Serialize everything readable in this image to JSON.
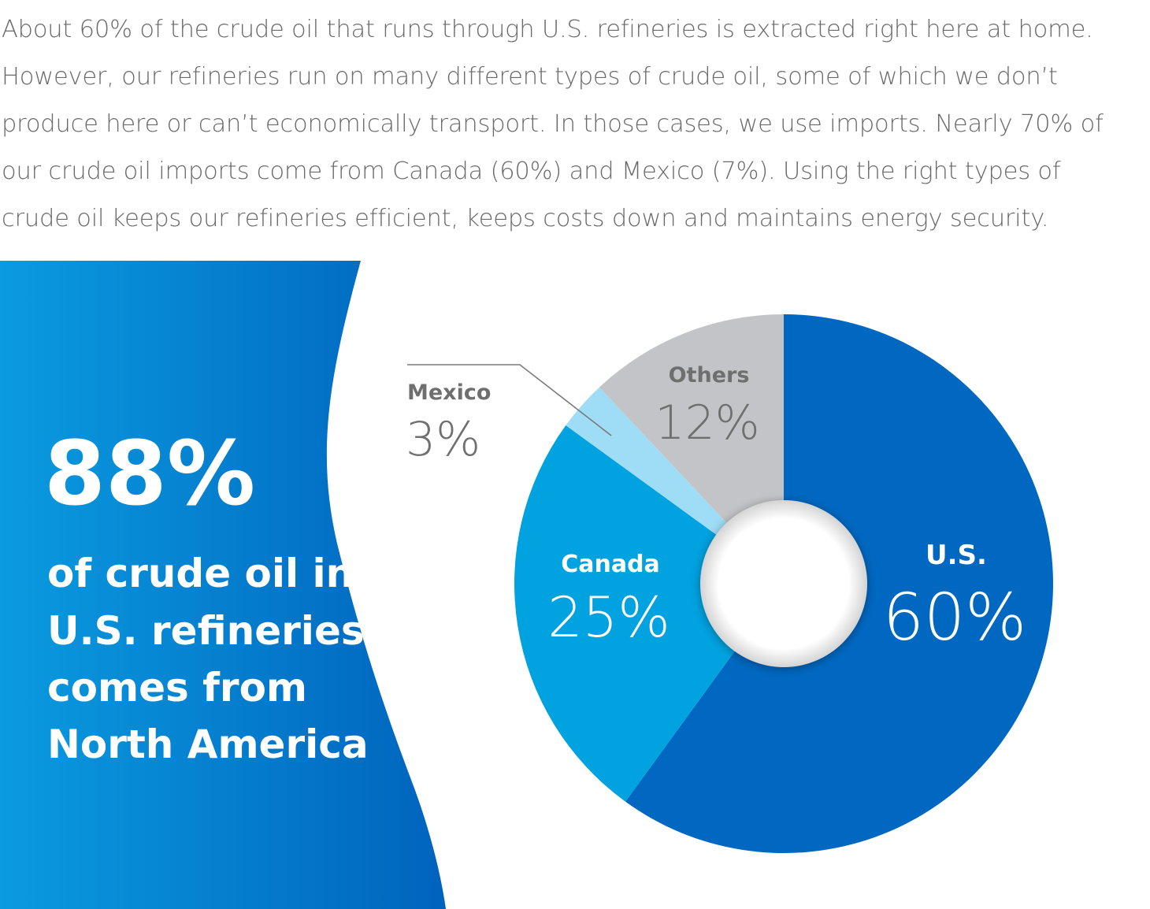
{
  "intro": {
    "lines": [
      "About 60% of the crude oil that runs through U.S. refineries is extracted right here at home.",
      "However, our refineries run on many different types of crude oil, some of which we don’t",
      "produce here or can’t economically transport. In those cases, we use imports. Nearly 70% of",
      "our crude oil imports come from Canada (60%) and Mexico (7%). Using the right types of",
      "crude oil keeps our refineries efficient, keeps costs down and maintains energy security."
    ]
  },
  "callout": {
    "stat": "88%",
    "lines": [
      "of crude oil in",
      "U.S. refineries",
      "comes from",
      "North America"
    ]
  },
  "colors": {
    "us": "#0068c1",
    "canada": "#00a2e0",
    "mexico": "#9fdcf5",
    "others": "#c3c4c7",
    "panel_dark": "#0063bd",
    "panel_light": "#0a9be0",
    "label_dark": "#6f6f6f",
    "label_light": "#ffffff"
  },
  "chart_data": {
    "type": "pie",
    "donut": true,
    "slices": [
      {
        "key": "us",
        "label": "U.S.",
        "value": 60,
        "value_label": "60%",
        "color": "#0068c1"
      },
      {
        "key": "canada",
        "label": "Canada",
        "value": 25,
        "value_label": "25%",
        "color": "#00a2e0"
      },
      {
        "key": "mexico",
        "label": "Mexico",
        "value": 3,
        "value_label": "3%",
        "color": "#9fdcf5"
      },
      {
        "key": "others",
        "label": "Others",
        "value": 12,
        "value_label": "12%",
        "color": "#c3c4c7"
      }
    ],
    "title": "",
    "legend": "none"
  }
}
